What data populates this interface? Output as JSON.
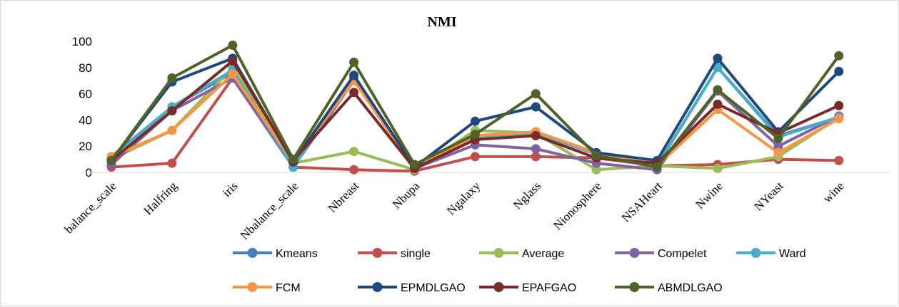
{
  "chart_data": {
    "type": "line",
    "title": "NMI",
    "xlabel": "",
    "ylabel": "",
    "ylim": [
      0,
      100
    ],
    "yticks": [
      0,
      20,
      40,
      60,
      80,
      100
    ],
    "grid": false,
    "legend_position": "bottom",
    "categories": [
      "balance_scale",
      "Halfring",
      "iris",
      "Nbalance_scale",
      "Nbreast",
      "Nbupa",
      "Ngalaxy",
      "Nglass",
      "Nionosphere",
      "NSAHeart",
      "Nwine",
      "NYeast",
      "wine"
    ],
    "series": [
      {
        "name": "Kmeans",
        "color": "#4a7ebb",
        "values": [
          12,
          50,
          76,
          4,
          72,
          2,
          27,
          30,
          14,
          5,
          80,
          28,
          42
        ]
      },
      {
        "name": "single",
        "color": "#c0504d",
        "values": [
          4,
          7,
          72,
          4,
          2,
          1,
          12,
          12,
          11,
          5,
          6,
          10,
          9
        ]
      },
      {
        "name": "Average",
        "color": "#9bbb59",
        "values": [
          10,
          32,
          80,
          7,
          16,
          2,
          32,
          30,
          2,
          5,
          3,
          12,
          42
        ]
      },
      {
        "name": "Compelet",
        "color": "#8064a2",
        "values": [
          6,
          47,
          72,
          4,
          70,
          3,
          21,
          18,
          7,
          2,
          62,
          20,
          43
        ]
      },
      {
        "name": "Ward",
        "color": "#4bacc6",
        "values": [
          11,
          50,
          78,
          4,
          74,
          3,
          27,
          30,
          14,
          5,
          80,
          27,
          42
        ]
      },
      {
        "name": "FCM",
        "color": "#f79646",
        "values": [
          12,
          32,
          75,
          8,
          70,
          3,
          28,
          31,
          15,
          5,
          48,
          15,
          41
        ]
      },
      {
        "name": "EPMDLGAO",
        "color": "#1f497d",
        "values": [
          9,
          69,
          87,
          8,
          74,
          4,
          39,
          50,
          15,
          9,
          87,
          31,
          77
        ]
      },
      {
        "name": "EPAFGAO",
        "color": "#772c2a",
        "values": [
          9,
          47,
          85,
          9,
          61,
          3,
          25,
          28,
          11,
          7,
          52,
          30,
          51
        ]
      },
      {
        "name": "ABMDLGAO",
        "color": "#4f6228",
        "values": [
          9,
          72,
          97,
          10,
          84,
          6,
          29,
          60,
          13,
          4,
          63,
          26,
          89
        ]
      }
    ]
  }
}
